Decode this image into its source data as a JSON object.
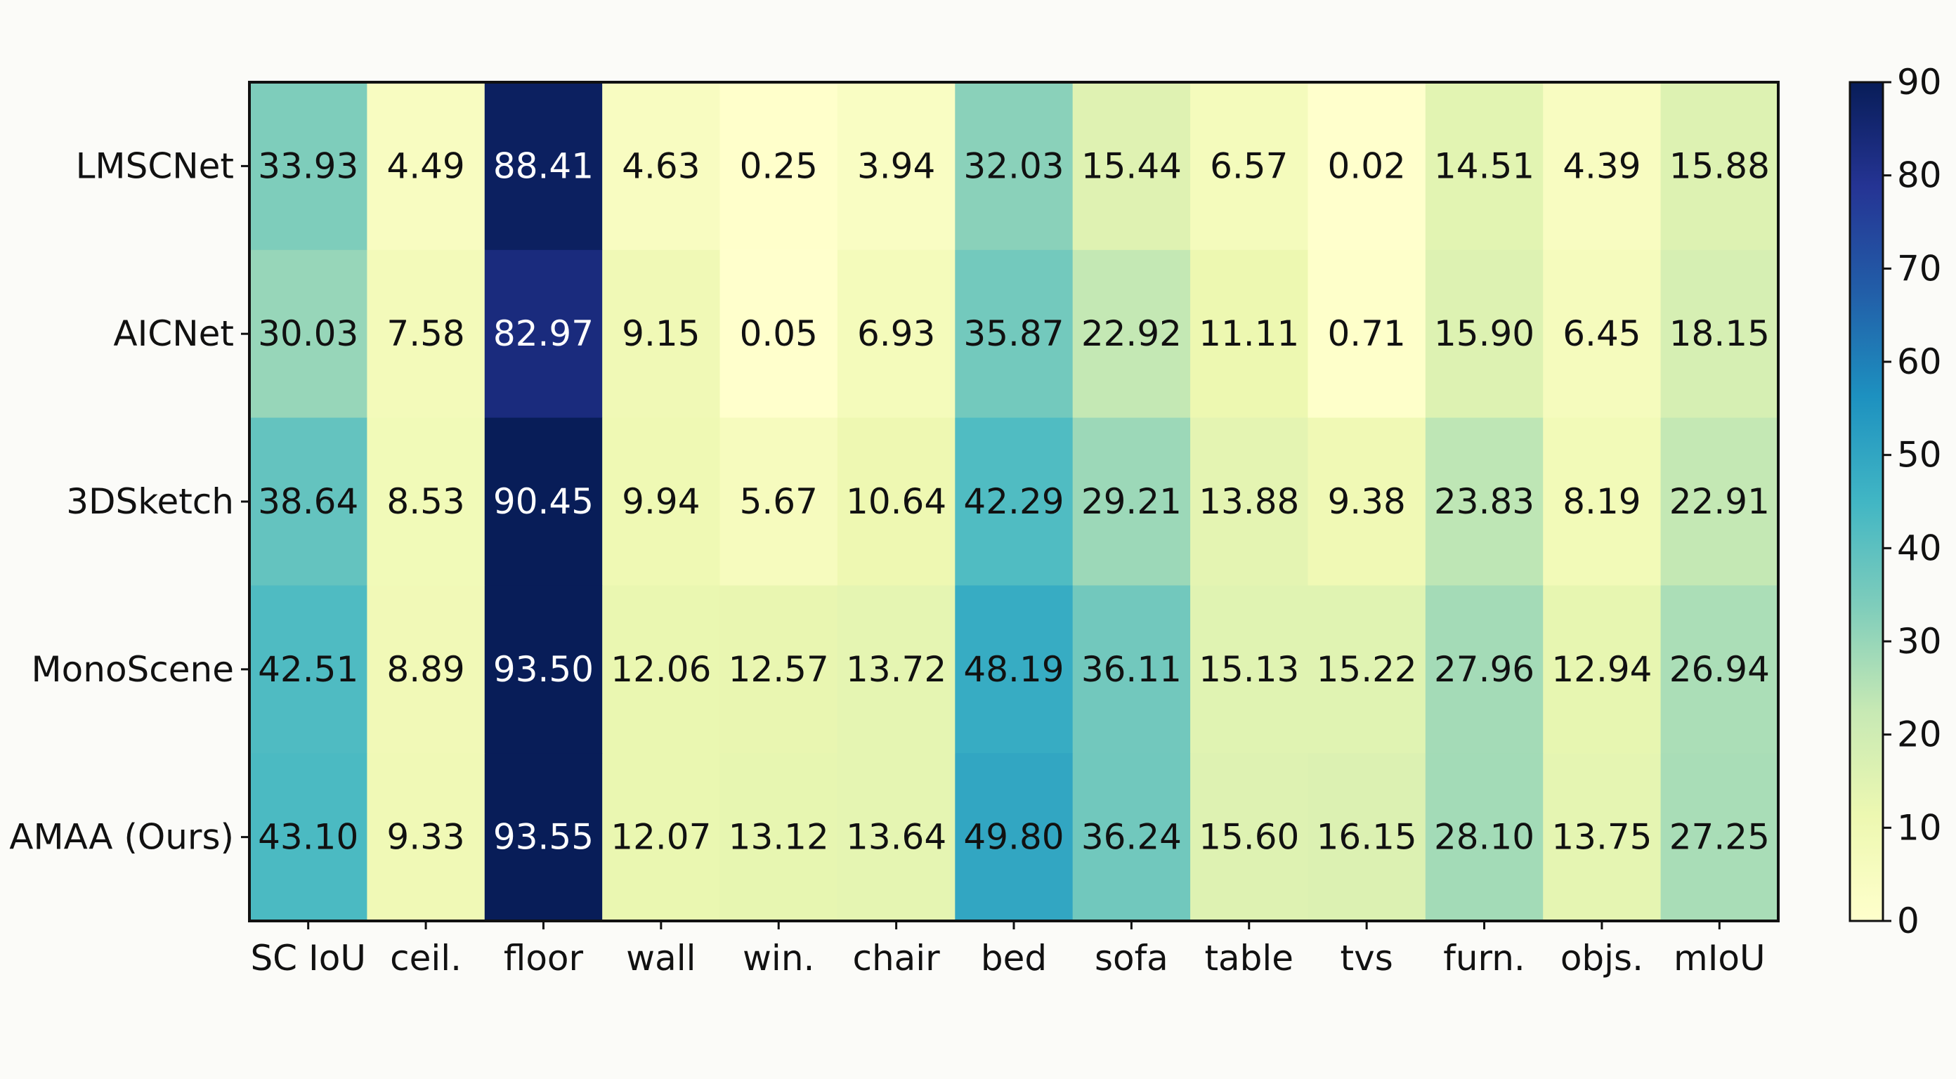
{
  "chart_data": {
    "type": "heatmap",
    "title": "",
    "xlabel": "",
    "ylabel": "",
    "categories": [
      "SC IoU",
      "ceil.",
      "floor",
      "wall",
      "win.",
      "chair",
      "bed",
      "sofa",
      "table",
      "tvs",
      "furn.",
      "objs.",
      "mIoU"
    ],
    "rows": [
      "LMSCNet",
      "AICNet",
      "3DSketch",
      "MonoScene",
      "AMAA (Ours)"
    ],
    "values": [
      [
        "33.93",
        "4.49",
        "88.41",
        "4.63",
        "0.25",
        "3.94",
        "32.03",
        "15.44",
        "6.57",
        "0.02",
        "14.51",
        "4.39",
        "15.88"
      ],
      [
        "30.03",
        "7.58",
        "82.97",
        "9.15",
        "0.05",
        "6.93",
        "35.87",
        "22.92",
        "11.11",
        "0.71",
        "15.90",
        "6.45",
        "18.15"
      ],
      [
        "38.64",
        "8.53",
        "90.45",
        "9.94",
        "5.67",
        "10.64",
        "42.29",
        "29.21",
        "13.88",
        "9.38",
        "23.83",
        "8.19",
        "22.91"
      ],
      [
        "42.51",
        "8.89",
        "93.50",
        "12.06",
        "12.57",
        "13.72",
        "48.19",
        "36.11",
        "15.13",
        "15.22",
        "27.96",
        "12.94",
        "26.94"
      ],
      [
        "43.10",
        "9.33",
        "93.55",
        "12.07",
        "13.12",
        "13.64",
        "49.80",
        "36.24",
        "15.60",
        "16.15",
        "28.10",
        "13.75",
        "27.25"
      ]
    ],
    "colorbar": {
      "range": [
        0,
        90
      ],
      "ticks": [
        "0",
        "10",
        "20",
        "30",
        "40",
        "50",
        "60",
        "70",
        "80",
        "90"
      ],
      "colors": [
        "#ffffcc",
        "#edf8b1",
        "#c7e9b4",
        "#7fcdbb",
        "#41b6c4",
        "#1d91c0",
        "#225ea8",
        "#253494",
        "#081d58"
      ]
    },
    "grid": false,
    "legend_position": "right"
  }
}
